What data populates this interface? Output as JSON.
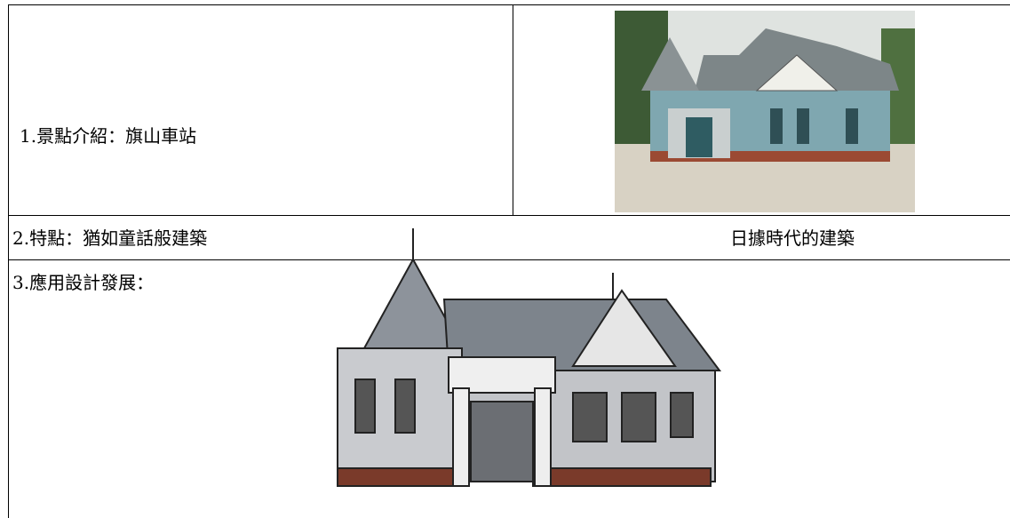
{
  "table": {
    "rows": [
      {
        "text": "1.景點介紹：旗山車站"
      },
      {
        "text_left": "2.特點：猶如童話般建築",
        "text_right": "日據時代的建築"
      },
      {
        "text": "3.應用設計發展："
      }
    ]
  }
}
